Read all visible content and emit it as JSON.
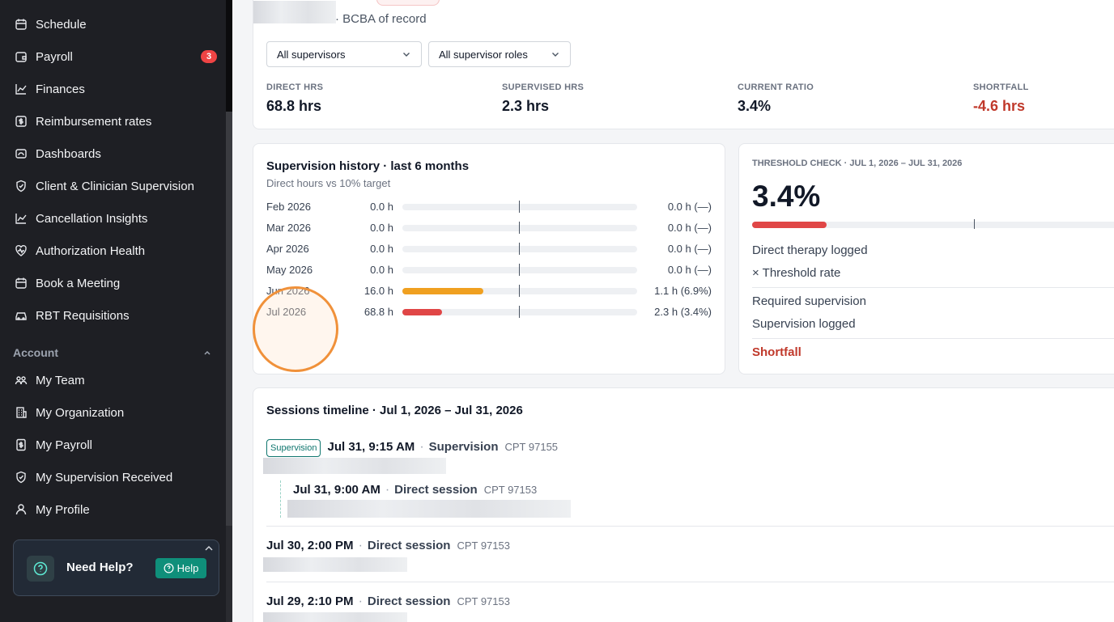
{
  "sidebar": {
    "items": [
      {
        "label": "Schedule",
        "icon": "calendar-icon"
      },
      {
        "label": "Payroll",
        "icon": "wallet-icon",
        "badge": "3"
      },
      {
        "label": "Finances",
        "icon": "chart-line-icon"
      },
      {
        "label": "Reimbursement rates",
        "icon": "dollar-doc-icon"
      },
      {
        "label": "Dashboards",
        "icon": "dashboard-icon"
      },
      {
        "label": "Client & Clinician Supervision",
        "icon": "shield-icon"
      },
      {
        "label": "Cancellation Insights",
        "icon": "chart-line-icon"
      },
      {
        "label": "Authorization Health",
        "icon": "heart-pulse-icon"
      },
      {
        "label": "Book a Meeting",
        "icon": "calendar-icon"
      },
      {
        "label": "RBT Requisitions",
        "icon": "car-icon"
      }
    ],
    "account_label": "Account",
    "account_items": [
      {
        "label": "My Team",
        "icon": "team-icon"
      },
      {
        "label": "My Organization",
        "icon": "building-icon"
      },
      {
        "label": "My Payroll",
        "icon": "dollar-doc-icon"
      },
      {
        "label": "My Supervision Received",
        "icon": "shield-icon"
      },
      {
        "label": "My Profile",
        "icon": "user-icon"
      }
    ],
    "help": {
      "title": "Need Help?",
      "button": "Help"
    }
  },
  "header": {
    "bcba_suffix": "· BCBA of record",
    "supervisor_filter": "All supervisors",
    "role_filter": "All supervisor roles"
  },
  "stats": [
    {
      "label": "DIRECT HRS",
      "value": "68.8 hrs"
    },
    {
      "label": "SUPERVISED HRS",
      "value": "2.3 hrs"
    },
    {
      "label": "CURRENT RATIO",
      "value": "3.4%"
    },
    {
      "label": "SHORTFALL",
      "value": "-4.6 hrs",
      "color": "#c0392b"
    }
  ],
  "history": {
    "title": "Supervision history · last 6 months",
    "subtitle": "Direct hours vs 10% target",
    "rows": [
      {
        "month": "Feb 2026",
        "hours": "0.0 h",
        "fill": 0,
        "color": "#e5e7eb",
        "right": "0.0 h (—)"
      },
      {
        "month": "Mar 2026",
        "hours": "0.0 h",
        "fill": 0,
        "color": "#e5e7eb",
        "right": "0.0 h (—)"
      },
      {
        "month": "Apr 2026",
        "hours": "0.0 h",
        "fill": 0,
        "color": "#e5e7eb",
        "right": "0.0 h (—)"
      },
      {
        "month": "May 2026",
        "hours": "0.0 h",
        "fill": 0,
        "color": "#e5e7eb",
        "right": "0.0 h (—)"
      },
      {
        "month": "Jun 2026",
        "hours": "16.0 h",
        "fill": 0.345,
        "color": "#f0a020",
        "right": "1.1 h (6.9%)"
      },
      {
        "month": "Jul 2026",
        "hours": "68.8 h",
        "fill": 0.17,
        "color": "#e04646",
        "right": "2.3 h (3.4%)"
      }
    ]
  },
  "threshold": {
    "title": "THRESHOLD CHECK · JUL 1, 2026 – JUL 31, 2026",
    "value": "3.4%",
    "progress": 0.2,
    "rows": [
      "Direct therapy logged",
      "× Threshold rate",
      "Required supervision",
      "Supervision logged"
    ],
    "shortfall_label": "Shortfall"
  },
  "timeline": {
    "title": "Sessions timeline · Jul 1, 2026 – Jul 31, 2026",
    "tag": "Supervision",
    "sessions": [
      {
        "time": "Jul 31, 9:15 AM",
        "type": "Supervision",
        "cpt": "CPT 97155"
      },
      {
        "time": "Jul 31, 9:00 AM",
        "type": "Direct session",
        "cpt": "CPT 97153"
      },
      {
        "time": "Jul 30, 2:00 PM",
        "type": "Direct session",
        "cpt": "CPT 97153"
      },
      {
        "time": "Jul 29, 2:10 PM",
        "type": "Direct session",
        "cpt": "CPT 97153"
      }
    ]
  }
}
